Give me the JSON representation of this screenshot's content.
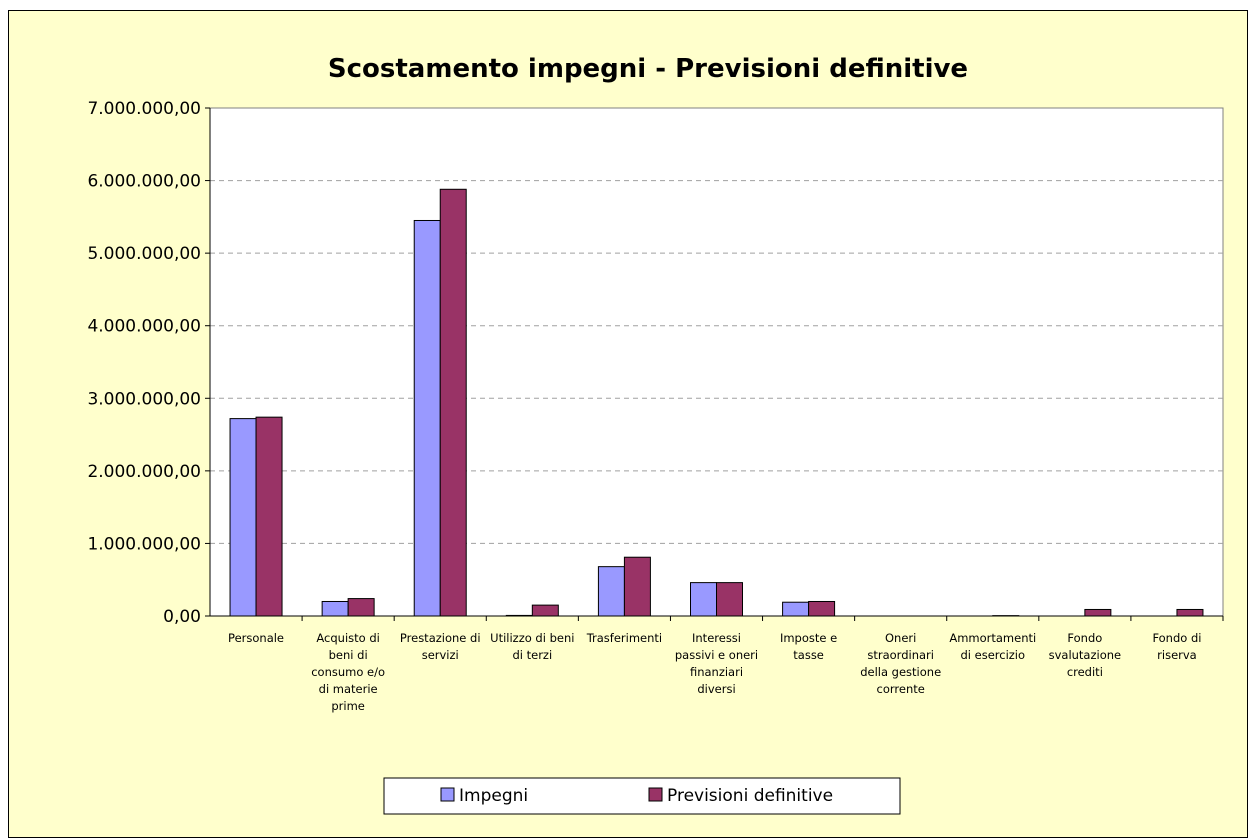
{
  "chart_data": {
    "type": "bar",
    "title": "Scostamento impegni - Previsioni definitive",
    "xlabel": "",
    "ylabel": "",
    "ylim": [
      0,
      7000000
    ],
    "ytick_values": [
      0,
      1000000,
      2000000,
      3000000,
      4000000,
      5000000,
      6000000,
      7000000
    ],
    "ytick_labels": [
      "0,00",
      "1.000.000,00",
      "2.000.000,00",
      "3.000.000,00",
      "4.000.000,00",
      "5.000.000,00",
      "6.000.000,00",
      "7.000.000,00"
    ],
    "grid": "horizontal dashed",
    "legend_position": "bottom",
    "categories": [
      [
        "Personale"
      ],
      [
        "Acquisto di",
        "beni di",
        "consumo e/o",
        "di materie",
        "prime"
      ],
      [
        "Prestazione di",
        "servizi"
      ],
      [
        "Utilizzo di beni",
        "di terzi"
      ],
      [
        "Trasferimenti"
      ],
      [
        "Interessi",
        "passivi e oneri",
        "finanziari",
        "diversi"
      ],
      [
        "Imposte e",
        "tasse"
      ],
      [
        "Oneri",
        "straordinari",
        "della gestione",
        "corrente"
      ],
      [
        "Ammortamenti",
        "di esercizio"
      ],
      [
        "Fondo",
        "svalutazione",
        "crediti"
      ],
      [
        "Fondo di",
        "riserva"
      ]
    ],
    "series": [
      {
        "name": "Impegni",
        "color": "#9999ff",
        "values": [
          2720000,
          200000,
          5450000,
          8000,
          680000,
          460000,
          190000,
          0,
          0,
          0,
          0
        ]
      },
      {
        "name": "Previsioni definitive",
        "color": "#993366",
        "values": [
          2740000,
          240000,
          5880000,
          150000,
          810000,
          460000,
          200000,
          0,
          5000,
          90000,
          90000
        ]
      }
    ],
    "colors": {
      "background": "#ffffcc",
      "plot_area": "#ffffff",
      "grid": "#a0a0a0"
    }
  }
}
